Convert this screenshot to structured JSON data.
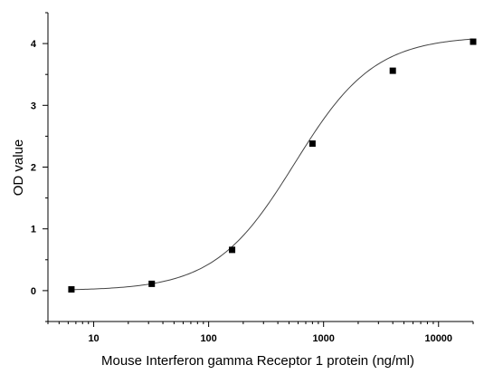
{
  "chart_data": {
    "type": "scatter",
    "xlabel": "Mouse Interferon gamma Receptor 1 protein (ng/ml)",
    "ylabel": "OD value",
    "xscale": "log",
    "xlim": [
      4,
      20000
    ],
    "ylim": [
      -0.5,
      4.5
    ],
    "x_ticks": [
      10,
      100,
      1000,
      10000
    ],
    "x_tick_labels": [
      "10",
      "100",
      "1000",
      "10000"
    ],
    "y_ticks": [
      0,
      1,
      2,
      3,
      4
    ],
    "y_tick_labels": [
      "0",
      "1",
      "2",
      "3",
      "4"
    ],
    "grid": false,
    "legend": "none",
    "marker_color": "#000000",
    "curve_color": "#444444",
    "points": [
      {
        "x": 6.4,
        "y": 0.02
      },
      {
        "x": 32,
        "y": 0.11
      },
      {
        "x": 160,
        "y": 0.66
      },
      {
        "x": 800,
        "y": 2.38
      },
      {
        "x": 4000,
        "y": 3.56
      },
      {
        "x": 20000,
        "y": 4.03
      }
    ],
    "fit": {
      "type": "4PL",
      "bottom": 0.0,
      "top": 4.12,
      "ec50": 560,
      "hill": 1.25
    }
  }
}
